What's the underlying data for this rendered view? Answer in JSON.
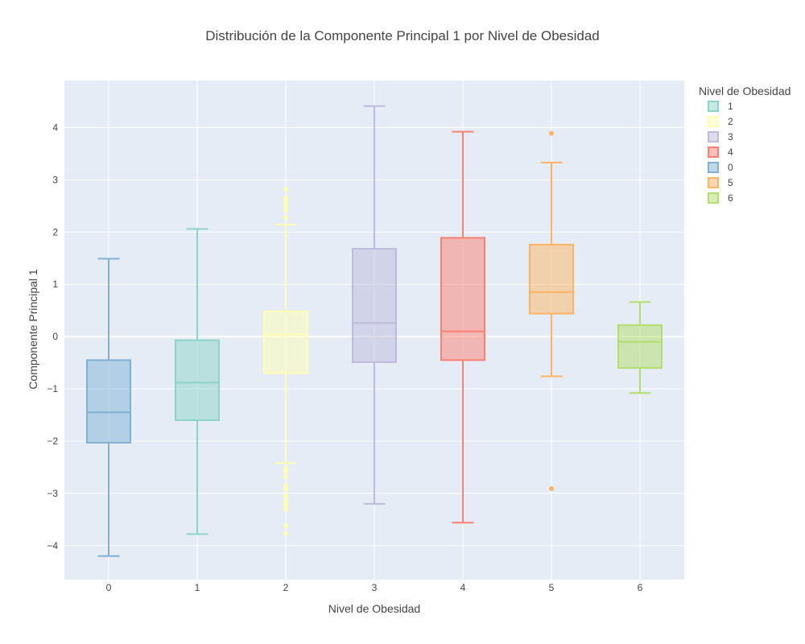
{
  "chart_data": {
    "type": "box",
    "title": "Distribución de la Componente Principal 1 por Nivel de Obesidad",
    "xlabel": "Nivel de Obesidad",
    "ylabel": "Componente Principal 1",
    "categories": [
      "0",
      "1",
      "2",
      "3",
      "4",
      "5",
      "6"
    ],
    "y_ticks": [
      -4,
      -3,
      -2,
      -1,
      0,
      1,
      2,
      3,
      4
    ],
    "ylim": [
      -4.65,
      4.9
    ],
    "grid": true,
    "legend_title": "Nivel de Obesidad",
    "legend_position": "top-right",
    "legend_order": [
      "1",
      "2",
      "3",
      "4",
      "0",
      "5",
      "6"
    ],
    "series": [
      {
        "name": "0",
        "category": "0",
        "color": "#80b1d3",
        "min": -4.2,
        "q1": -2.03,
        "median": -1.45,
        "q3": -0.45,
        "max": 1.49,
        "outliers": []
      },
      {
        "name": "1",
        "category": "1",
        "color": "#8dd3c7",
        "min": -3.78,
        "q1": -1.6,
        "median": -0.88,
        "q3": -0.07,
        "max": 2.06,
        "outliers": []
      },
      {
        "name": "2",
        "category": "2",
        "color": "#ffffb3",
        "min": -2.42,
        "q1": -0.7,
        "median": 0.04,
        "q3": 0.48,
        "max": 2.14,
        "outliers": [
          2.82,
          2.65,
          2.58,
          2.5,
          2.42,
          2.28,
          -2.52,
          -2.58,
          -2.68,
          -2.85,
          -2.92,
          -3.05,
          -3.15,
          -3.22,
          -3.3,
          -3.62,
          -3.77
        ]
      },
      {
        "name": "3",
        "category": "3",
        "color": "#bebada",
        "min": -3.2,
        "q1": -0.49,
        "median": 0.26,
        "q3": 1.68,
        "max": 4.41,
        "outliers": []
      },
      {
        "name": "4",
        "category": "4",
        "color": "#fb8072",
        "min": -3.56,
        "q1": -0.45,
        "median": 0.1,
        "q3": 1.89,
        "max": 3.92,
        "outliers": []
      },
      {
        "name": "5",
        "category": "5",
        "color": "#fdb462",
        "min": -0.76,
        "q1": 0.44,
        "median": 0.85,
        "q3": 1.76,
        "max": 3.33,
        "outliers": [
          3.89,
          -2.91
        ]
      },
      {
        "name": "6",
        "category": "6",
        "color": "#b3de69",
        "min": -1.08,
        "q1": -0.6,
        "median": -0.1,
        "q3": 0.22,
        "max": 0.66,
        "outliers": []
      }
    ]
  }
}
